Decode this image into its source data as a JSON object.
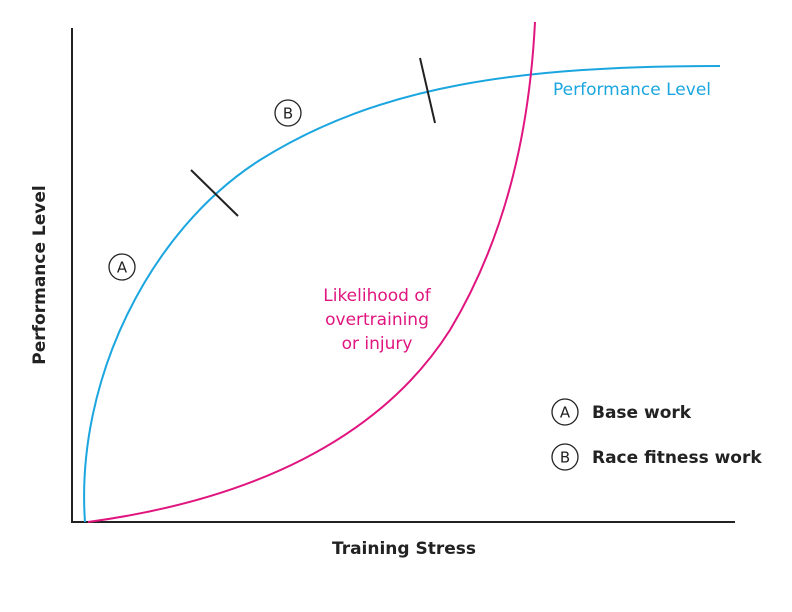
{
  "axes": {
    "x_label": "Training Stress",
    "y_label": "Performance Level"
  },
  "curves": [
    {
      "label": "Performance Level"
    },
    {
      "label_lines": [
        "Likelihood of",
        "overtraining",
        "or injury"
      ]
    }
  ],
  "markers": [
    {
      "letter": "A"
    },
    {
      "letter": "B"
    }
  ],
  "legend": [
    {
      "letter": "A",
      "label": "Base work"
    },
    {
      "letter": "B",
      "label": "Race fitness work"
    }
  ]
}
